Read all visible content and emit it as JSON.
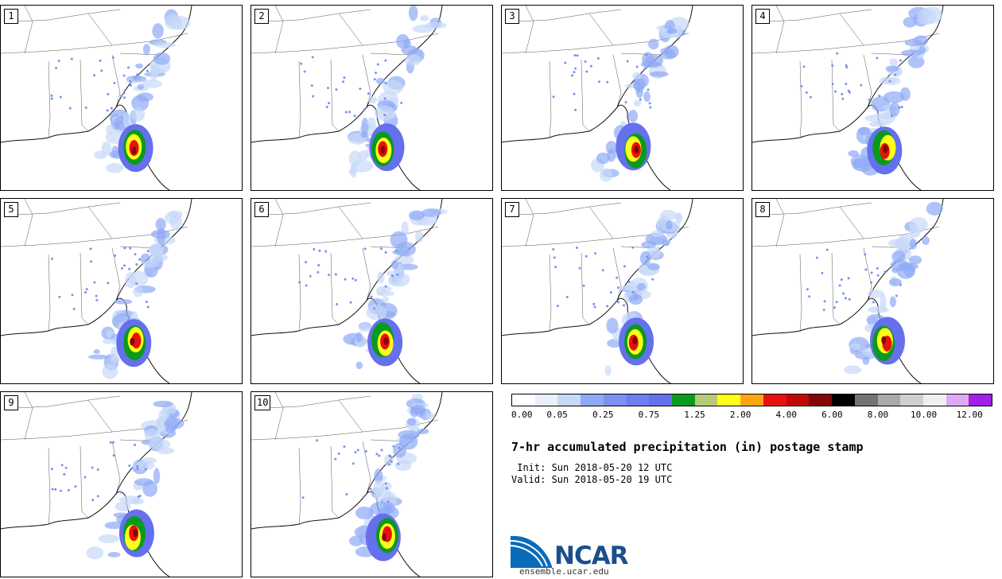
{
  "panels": [
    {
      "label": "1"
    },
    {
      "label": "2"
    },
    {
      "label": "3"
    },
    {
      "label": "4"
    },
    {
      "label": "5"
    },
    {
      "label": "6"
    },
    {
      "label": "7"
    },
    {
      "label": "8"
    },
    {
      "label": "9"
    },
    {
      "label": "10"
    }
  ],
  "colorbar": {
    "colors": [
      "#ffffff",
      "#e8f0fc",
      "#c8d8f8",
      "#8eaaf6",
      "#7b90f0",
      "#6d7ef0",
      "#6470ec",
      "#0a9a1e",
      "#b5cc76",
      "#ffff1a",
      "#ffa512",
      "#e8100e",
      "#c0080a",
      "#840608",
      "#000000",
      "#737373",
      "#a9a9a9",
      "#cfcfcf",
      "#efefef",
      "#e0a8f4",
      "#a020e8"
    ],
    "tick_labels": [
      "0.00",
      "0.05",
      "0.25",
      "0.75",
      "1.25",
      "2.00",
      "4.00",
      "6.00",
      "8.00",
      "10.00",
      "12.00"
    ]
  },
  "title": "7-hr accumulated precipitation (in) postage stamp",
  "init_line": " Init: Sun 2018-05-20 12 UTC",
  "valid_line": "Valid: Sun 2018-05-20 19 UTC",
  "logo": {
    "text": "NCAR",
    "url": "ensemble.ucar.edu",
    "color": "#1a4f8c"
  }
}
